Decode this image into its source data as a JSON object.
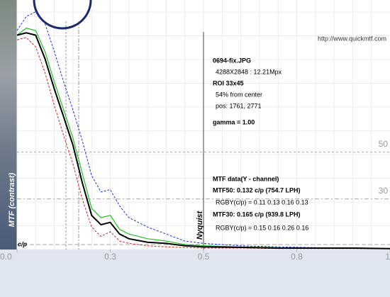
{
  "chart_data": {
    "type": "line",
    "watermark": "http://www.quickmtf.com",
    "ylabel": "MTF (contrast)",
    "xlabel": "c/p",
    "annotation": "Nyquist",
    "info": [
      {
        "text": "0694-fix.JPG",
        "bold": true
      },
      {
        "text": "4288X2848 : 12.21Mpx",
        "bold": false
      },
      {
        "text": "ROI 33x45",
        "bold": true
      },
      {
        "text": "54% from center",
        "bold": false
      },
      {
        "text": "pos: 1761, 2771",
        "bold": false
      },
      {
        "text": "gamma = 1.00",
        "bold": true
      },
      {
        "text": "MTF data(Y - channel)",
        "bold": true
      },
      {
        "text": "MTF50: 0.132 c/p (754.7 LPH)",
        "bold": true
      },
      {
        "text": "RGBY(c/p) = 0.11 0.13 0.16 0.13",
        "bold": false
      },
      {
        "text": "MTF30: 0.165 c/p (939.8 LPH)",
        "bold": true
      },
      {
        "text": "RGBY(c/p) = 0.15 0.16 0.26 0.16",
        "bold": false
      }
    ],
    "x": [
      0,
      0.025,
      0.05,
      0.075,
      0.1,
      0.125,
      0.15,
      0.175,
      0.2,
      0.225,
      0.25,
      0.275,
      0.3,
      0.35,
      0.4,
      0.45,
      0.5,
      0.6,
      0.7,
      0.8,
      0.9,
      1.0
    ],
    "series": [
      {
        "color": "#2030e0",
        "dash": true,
        "values": [
          1.02,
          1.08,
          1.1,
          1.05,
          0.93,
          0.8,
          0.68,
          0.55,
          0.4,
          0.33,
          0.34,
          0.27,
          0.22,
          0.18,
          0.15,
          0.12,
          0.11,
          0.1,
          0.095,
          0.092,
          0.09,
          0.088
        ]
      },
      {
        "color": "#e02020",
        "dash": true,
        "values": [
          0.98,
          0.99,
          0.95,
          0.84,
          0.7,
          0.57,
          0.45,
          0.3,
          0.18,
          0.14,
          0.16,
          0.12,
          0.11,
          0.1,
          0.095,
          0.092,
          0.09,
          0.09,
          0.088,
          0.088,
          0.088,
          0.087
        ]
      },
      {
        "color": "#20c020",
        "dash": false,
        "values": [
          1.0,
          1.03,
          1.02,
          0.93,
          0.8,
          0.68,
          0.56,
          0.41,
          0.26,
          0.22,
          0.23,
          0.17,
          0.15,
          0.13,
          0.12,
          0.105,
          0.1,
          0.095,
          0.092,
          0.09,
          0.09,
          0.088
        ]
      },
      {
        "color": "#000000",
        "dash": false,
        "values": [
          1.0,
          1.01,
          1.0,
          0.9,
          0.77,
          0.65,
          0.53,
          0.37,
          0.23,
          0.19,
          0.2,
          0.15,
          0.13,
          0.115,
          0.11,
          0.1,
          0.095,
          0.093,
          0.09,
          0.09,
          0.09,
          0.088
        ]
      }
    ],
    "xlim": [
      0,
      1
    ],
    "xticks": [
      {
        "value": 0,
        "label": "0.0"
      },
      {
        "value": 0.25,
        "label": "0.3"
      },
      0.5,
      {
        "value": 0.75,
        "label": "0.8"
      },
      1
    ],
    "ylim": [
      0.09,
      1.12
    ],
    "yticks": [
      {
        "value": 0.3,
        "label": "30"
      },
      {
        "value": 0.5,
        "label": "50"
      }
    ],
    "grid": true
  }
}
